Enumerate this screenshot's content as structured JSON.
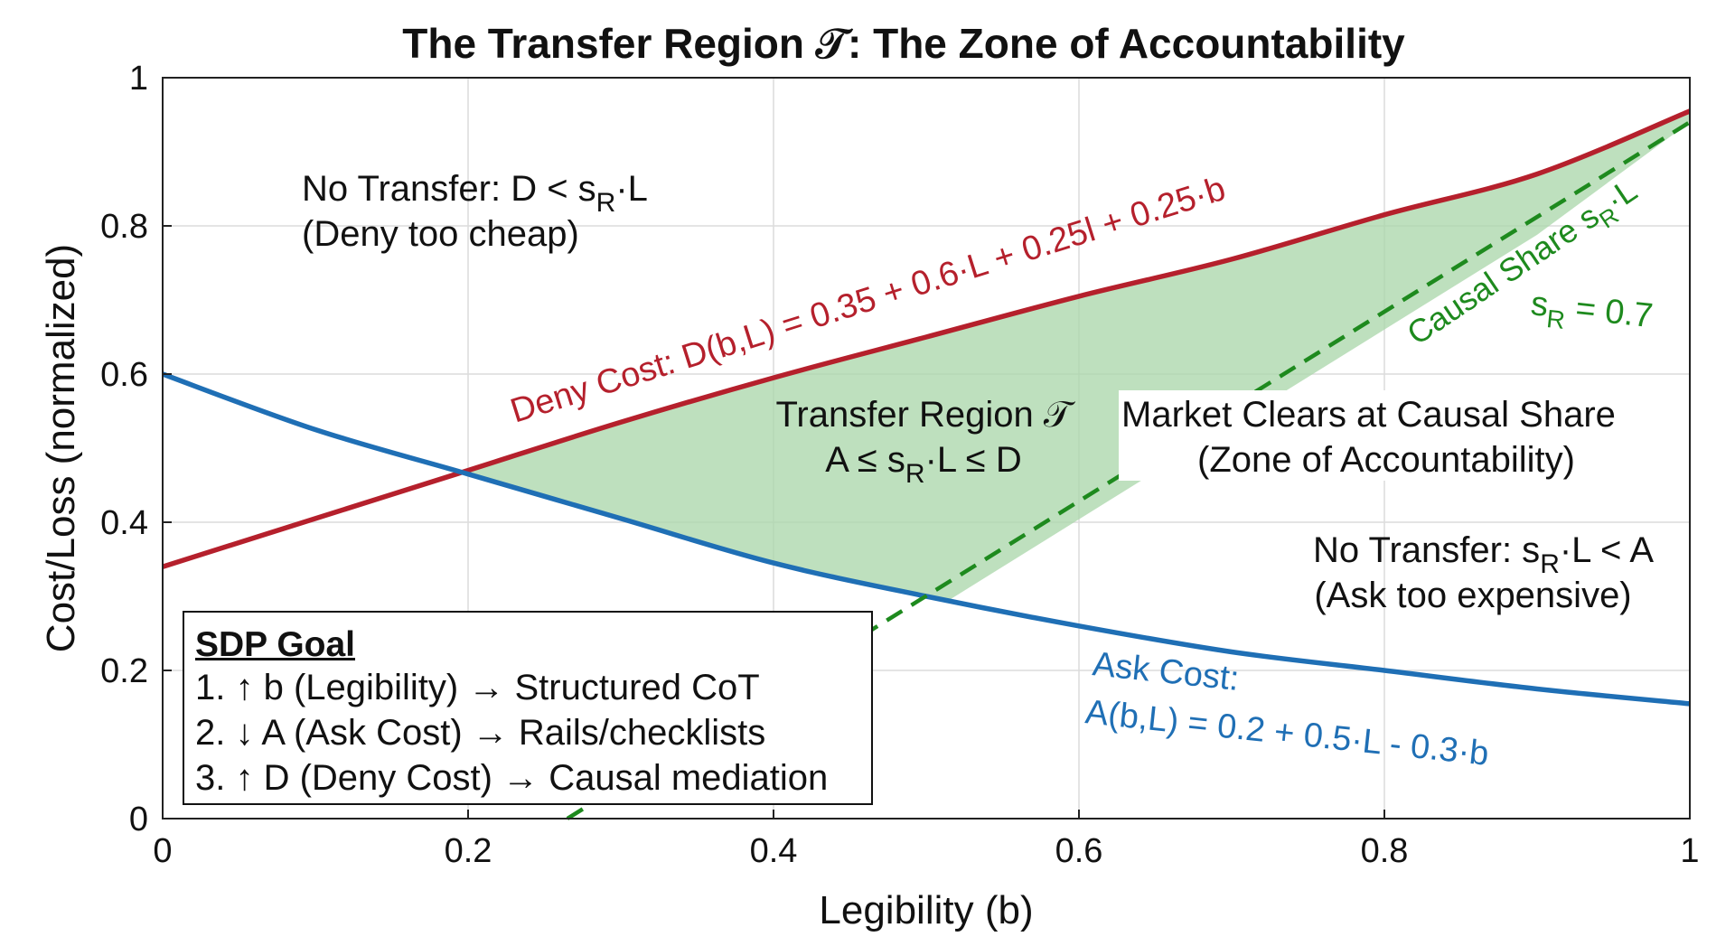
{
  "chart_data": {
    "type": "line",
    "title": "The Transfer Region 𝒯: The Zone of Accountability",
    "xlabel": "Legibility (b)",
    "ylabel": "Cost/Loss (normalized)",
    "xlim": [
      0,
      1
    ],
    "ylim": [
      0,
      1
    ],
    "xticks": [
      "0",
      "0.2",
      "0.4",
      "0.6",
      "0.8",
      "1"
    ],
    "yticks": [
      "0",
      "0.2",
      "0.4",
      "0.6",
      "0.8",
      "1"
    ],
    "grid": true,
    "series": [
      {
        "name": "Deny Cost",
        "color": "#b5202c",
        "x": [
          0,
          0.1,
          0.2,
          0.3,
          0.4,
          0.5,
          0.6,
          0.7,
          0.8,
          0.9,
          1.0
        ],
        "y": [
          0.34,
          0.405,
          0.47,
          0.535,
          0.595,
          0.65,
          0.705,
          0.755,
          0.815,
          0.87,
          0.955
        ]
      },
      {
        "name": "Ask Cost",
        "color": "#1f6fb5",
        "x": [
          0,
          0.1,
          0.2,
          0.3,
          0.4,
          0.5,
          0.6,
          0.7,
          0.8,
          0.9,
          1.0
        ],
        "y": [
          0.6,
          0.525,
          0.465,
          0.405,
          0.345,
          0.3,
          0.26,
          0.225,
          0.2,
          0.175,
          0.155
        ]
      },
      {
        "name": "Causal Share",
        "color": "#1e8a1e",
        "style": "dashed",
        "x": [
          0.265,
          1.0
        ],
        "y": [
          0.0,
          0.94
        ]
      }
    ],
    "shaded_region": {
      "name": "Transfer Region",
      "color": "#a8d5a8",
      "x": [
        0.185,
        0.2,
        0.3,
        0.4,
        0.5,
        0.515,
        0.6,
        0.7,
        0.8,
        0.9,
        1.0
      ],
      "upper": [
        0.47,
        0.47,
        0.535,
        0.595,
        0.65,
        0.66,
        0.705,
        0.755,
        0.815,
        0.87,
        0.955
      ],
      "lower": [
        0.47,
        0.465,
        0.405,
        0.345,
        0.3,
        0.295,
        0.404,
        0.532,
        0.66,
        0.788,
        0.94
      ]
    },
    "annotations": {
      "deny_label": "Deny Cost: D(b,L) = 0.35 + 0.6·L + 0.25l + 0.25·b",
      "ask_label_1": "Ask Cost:",
      "ask_label_2": "A(b,L) = 0.2 + 0.5·L - 0.3·b",
      "causal_label_main": "Causal Share s",
      "causal_label_sub": "R",
      "causal_label_tail": "·L",
      "sr_main": "s",
      "sr_sub": "R",
      "sr_tail": " = 0.7",
      "no_transfer_top_main": "No Transfer: D < s",
      "no_transfer_top_sub": "R",
      "no_transfer_top_tail": "·L",
      "no_transfer_top_line2": "(Deny too cheap)",
      "transfer_region_line1": "Transfer Region 𝒯",
      "transfer_region_main": "A ≤ s",
      "transfer_region_sub": "R",
      "transfer_region_tail": "·L ≤ D",
      "market_line1": "Market Clears at Causal Share",
      "market_line2": "(Zone of Accountability)",
      "no_transfer_bottom_main": "No Transfer: s",
      "no_transfer_bottom_sub": "R",
      "no_transfer_bottom_tail": "·L < A",
      "no_transfer_bottom_line2": "(Ask too expensive)"
    }
  },
  "legend_box": {
    "title": "SDP Goal",
    "items": [
      "1. ↑ b (Legibility) → Structured CoT",
      "2. ↓ A (Ask Cost) → Rails/checklists",
      "3. ↑ D (Deny Cost) → Causal mediation"
    ]
  }
}
